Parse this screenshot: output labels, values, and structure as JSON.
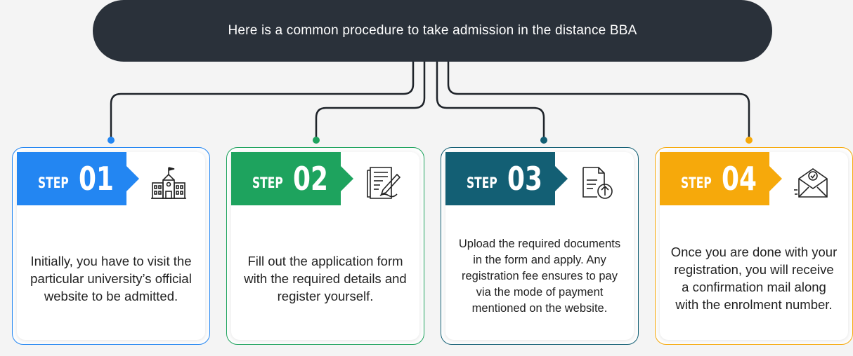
{
  "header": {
    "title": "Here is a common procedure to take admission in the distance BBA"
  },
  "steps": [
    {
      "label": "STEP",
      "number": "01",
      "color": "#2386f2",
      "icon": "school-building-icon",
      "text": "Initially, you have to visit the particular university’s official website to be admitted."
    },
    {
      "label": "STEP",
      "number": "02",
      "color": "#1ea35e",
      "icon": "form-pen-icon",
      "text": "Fill out the application form with the required details and register yourself."
    },
    {
      "label": "STEP",
      "number": "03",
      "color": "#135f74",
      "icon": "document-upload-icon",
      "text": "Upload the required documents in the form and apply. Any registration fee ensures to pay via the mode of payment mentioned on the website."
    },
    {
      "label": "STEP",
      "number": "04",
      "color": "#f6a90b",
      "icon": "confirmation-mail-icon",
      "text": "Once you are done with your registration, you will receive a confirmation mail along with the enrolment number."
    }
  ]
}
